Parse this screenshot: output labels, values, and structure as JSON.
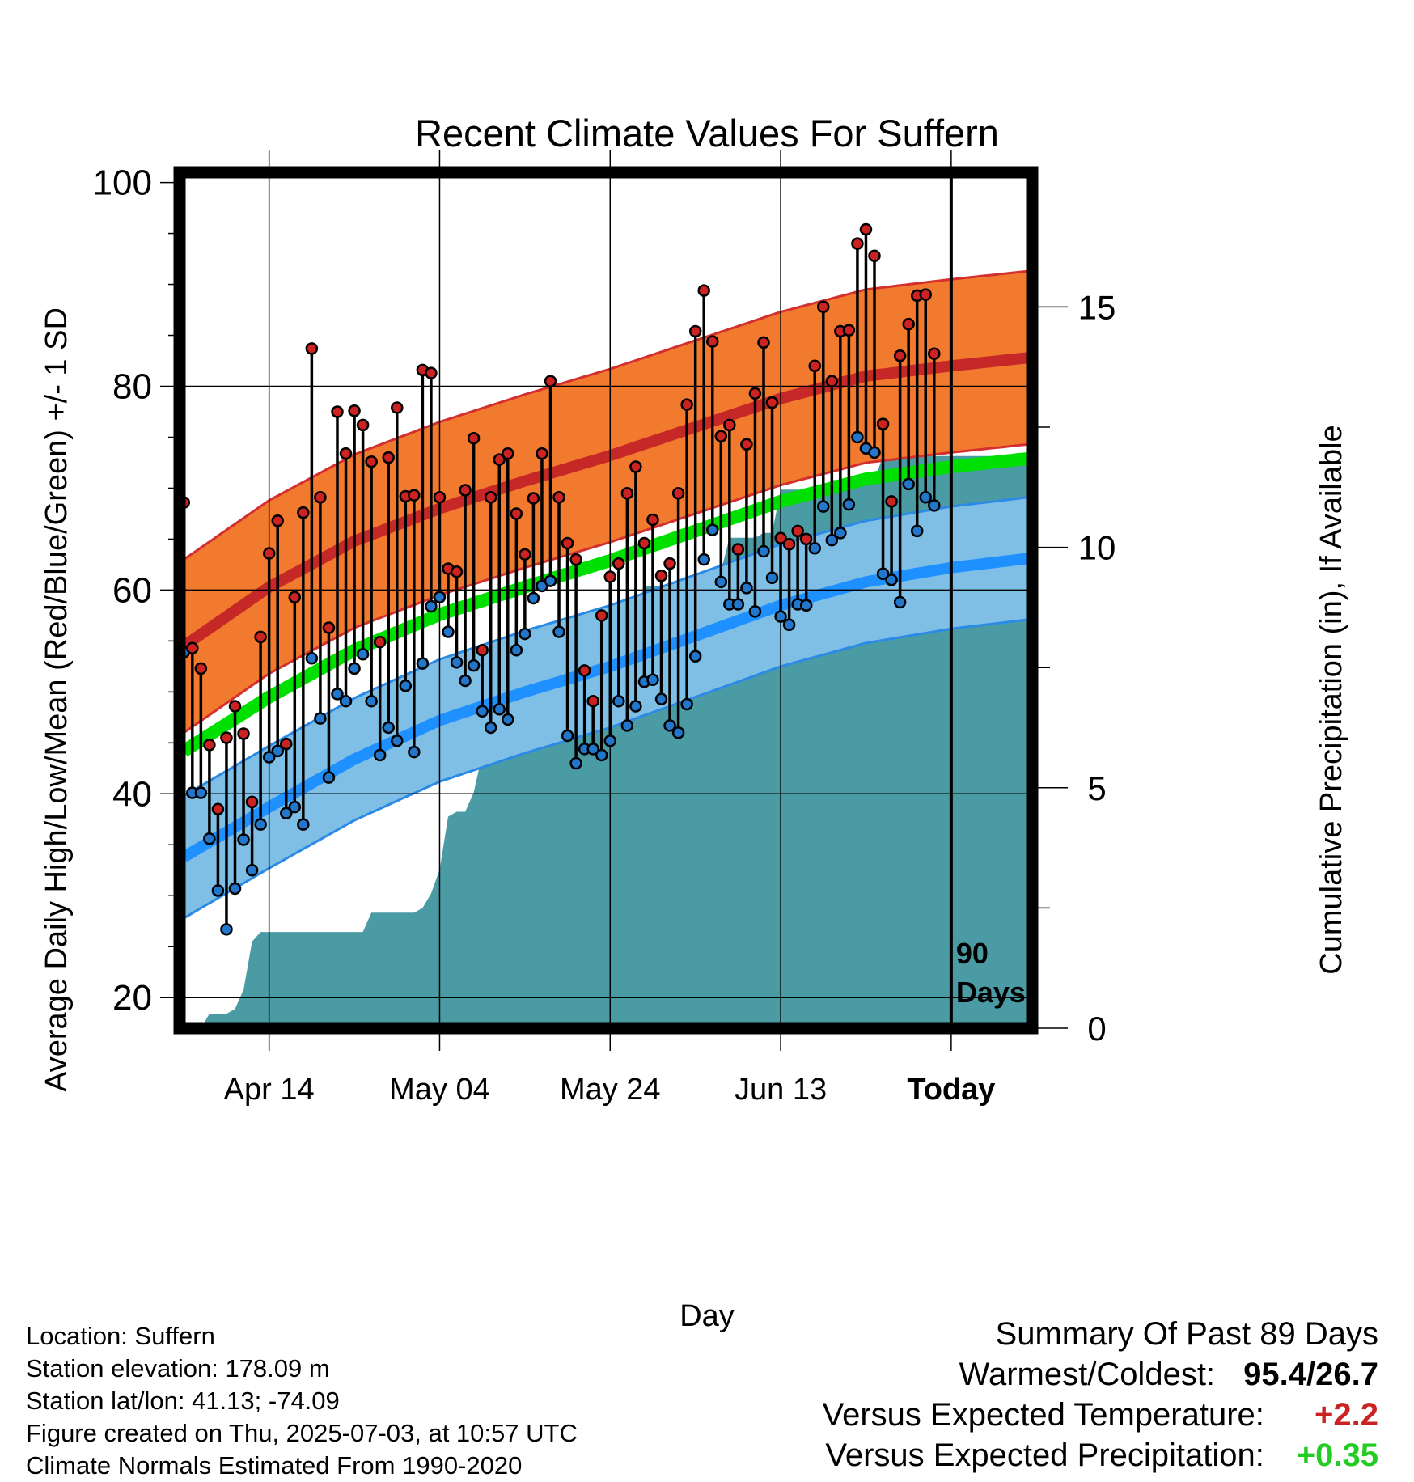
{
  "chart_data": {
    "type": "line",
    "title": "Recent Climate Values For Suffern",
    "xlabel": "Day",
    "ylabel": "Average Daily High/Low/Mean (Red/Blue/Green) +/- 1 SD",
    "y2label": "Cumulative Precipitation (in), If Available",
    "ylim": [
      17,
      101
    ],
    "y2lim": [
      0,
      17.8
    ],
    "yticks": [
      20,
      40,
      60,
      80,
      100
    ],
    "y2ticks": [
      0,
      5,
      10,
      15
    ],
    "xlim": [
      -0.5,
      99.5
    ],
    "xticks": [
      {
        "x": 10,
        "label": "Apr 14"
      },
      {
        "x": 30,
        "label": "May 04"
      },
      {
        "x": 50,
        "label": "May 24"
      },
      {
        "x": 70,
        "label": "Jun 13"
      },
      {
        "x": 90,
        "label": "Today",
        "bold": true
      }
    ],
    "today_x": 90,
    "today_label": [
      "90",
      "Days"
    ],
    "grid": true,
    "colors": {
      "high": "#c62828",
      "high_band": "#f27a2e",
      "high_edge": "#d32f2f",
      "low": "#1e90ff",
      "low_band": "#7fbfe6",
      "low_edge": "#2a8ae6",
      "mean": "#00e000",
      "precip": "#4b9ba5",
      "hi_dot": "#cc2222",
      "lo_dot": "#2277cc"
    },
    "normals": {
      "x": [
        0,
        10,
        20,
        30,
        40,
        50,
        60,
        70,
        80,
        90,
        99
      ],
      "high_mean": [
        54.5,
        60.3,
        64.8,
        68.0,
        70.7,
        73.2,
        76.0,
        78.8,
        81.0,
        82.0,
        82.8
      ],
      "high_sd": 8.5,
      "low_mean": [
        33.8,
        38.7,
        43.4,
        47.2,
        50.0,
        52.5,
        55.5,
        58.5,
        60.8,
        62.2,
        63.1
      ],
      "low_sd": 6.0,
      "mean_mean": [
        44.2,
        49.5,
        54.1,
        57.6,
        60.3,
        62.9,
        65.8,
        68.7,
        70.9,
        72.1,
        72.9
      ]
    },
    "daily": {
      "highs": [
        68.6,
        54.3,
        52.3,
        44.8,
        38.5,
        45.5,
        48.6,
        45.9,
        39.2,
        55.4,
        63.6,
        66.8,
        44.9,
        59.3,
        67.6,
        83.7,
        69.1,
        56.3,
        77.5,
        73.4,
        77.6,
        76.2,
        72.6,
        54.9,
        73.0,
        77.9,
        69.2,
        69.3,
        81.6,
        81.3,
        69.1,
        62.1,
        61.8,
        69.8,
        74.9,
        54.1,
        69.1,
        72.8,
        73.4,
        67.5,
        63.5,
        69.0,
        73.4,
        80.5,
        69.1,
        64.6,
        63.0,
        52.1,
        49.1,
        57.5,
        61.3,
        62.6,
        69.5,
        72.1,
        64.6,
        66.9,
        61.4,
        62.6,
        69.5,
        78.2,
        85.4,
        89.4,
        84.4,
        75.1,
        76.2,
        64.0,
        74.3,
        79.3,
        84.3,
        78.4,
        65.1,
        64.5,
        65.8,
        65.0,
        82.0,
        87.8,
        80.5,
        85.4,
        85.5,
        94.0,
        95.4,
        92.8,
        76.3,
        68.7,
        83.0,
        86.1,
        88.9,
        89.0,
        83.2
      ],
      "lows": [
        53.9,
        40.1,
        40.1,
        35.6,
        30.5,
        26.7,
        30.7,
        35.5,
        32.5,
        37.0,
        43.6,
        44.2,
        38.1,
        38.7,
        37.0,
        53.3,
        47.4,
        41.6,
        49.8,
        49.1,
        52.3,
        53.7,
        49.1,
        43.8,
        46.5,
        45.2,
        50.6,
        44.1,
        52.8,
        58.4,
        59.3,
        55.9,
        52.9,
        51.1,
        52.6,
        48.1,
        46.5,
        48.3,
        47.3,
        54.1,
        55.7,
        59.2,
        60.4,
        60.9,
        55.9,
        45.7,
        43.0,
        44.4,
        44.4,
        43.8,
        45.2,
        49.1,
        46.7,
        48.6,
        51.0,
        51.2,
        49.3,
        46.7,
        46.0,
        48.8,
        53.5,
        63.0,
        65.9,
        60.8,
        58.6,
        58.6,
        60.2,
        57.9,
        63.8,
        61.2,
        57.4,
        56.6,
        58.6,
        58.5,
        64.1,
        68.2,
        64.9,
        65.6,
        68.4,
        75.0,
        73.9,
        73.5,
        61.6,
        61.0,
        58.8,
        70.4,
        65.8,
        69.1,
        68.3
      ],
      "precip_cumulative": [
        0.0,
        0.0,
        0.0,
        0.3,
        0.3,
        0.3,
        0.4,
        0.8,
        1.8,
        2.0,
        2.0,
        2.0,
        2.0,
        2.0,
        2.0,
        2.0,
        2.0,
        2.0,
        2.0,
        2.0,
        2.0,
        2.0,
        2.4,
        2.4,
        2.4,
        2.4,
        2.4,
        2.4,
        2.5,
        2.8,
        3.3,
        4.4,
        4.5,
        4.5,
        4.9,
        5.7,
        5.7,
        5.7,
        5.9,
        6.7,
        6.8,
        6.8,
        6.8,
        6.8,
        6.8,
        7.0,
        7.5,
        8.1,
        8.1,
        8.1,
        8.1,
        8.1,
        8.4,
        8.5,
        9.2,
        9.2,
        9.2,
        9.2,
        9.2,
        9.2,
        9.2,
        9.3,
        9.4,
        9.5,
        10.2,
        10.2,
        10.2,
        10.2,
        10.3,
        10.3,
        11.2,
        11.2,
        11.2,
        11.2,
        11.2,
        11.2,
        11.4,
        11.4,
        11.4,
        11.4,
        11.4,
        11.4,
        11.9,
        11.9,
        11.9,
        11.9,
        11.9,
        11.9,
        11.9,
        11.9,
        11.9,
        11.9,
        11.9,
        11.9,
        11.9,
        11.9,
        11.9,
        11.9,
        11.9,
        11.9
      ]
    }
  },
  "info": {
    "location": "Location: Suffern",
    "elevation": "Station elevation: 178.09 m",
    "latlon": "Station lat/lon: 41.13; -74.09",
    "created": "Figure created on Thu, 2025-07-03, at 10:57 UTC",
    "normals": "Climate Normals Estimated From 1990-2020"
  },
  "summary": {
    "title": "Summary Of Past 89 Days",
    "warmest_coldest_label": "Warmest/Coldest:",
    "warmest_coldest_value": "95.4/26.7",
    "temp_label": "Versus Expected Temperature:",
    "temp_value": "+2.2",
    "temp_color": "#cc2222",
    "precip_label": "Versus Expected Precipitation:",
    "precip_value": "+0.35",
    "precip_color": "#22cc22"
  }
}
